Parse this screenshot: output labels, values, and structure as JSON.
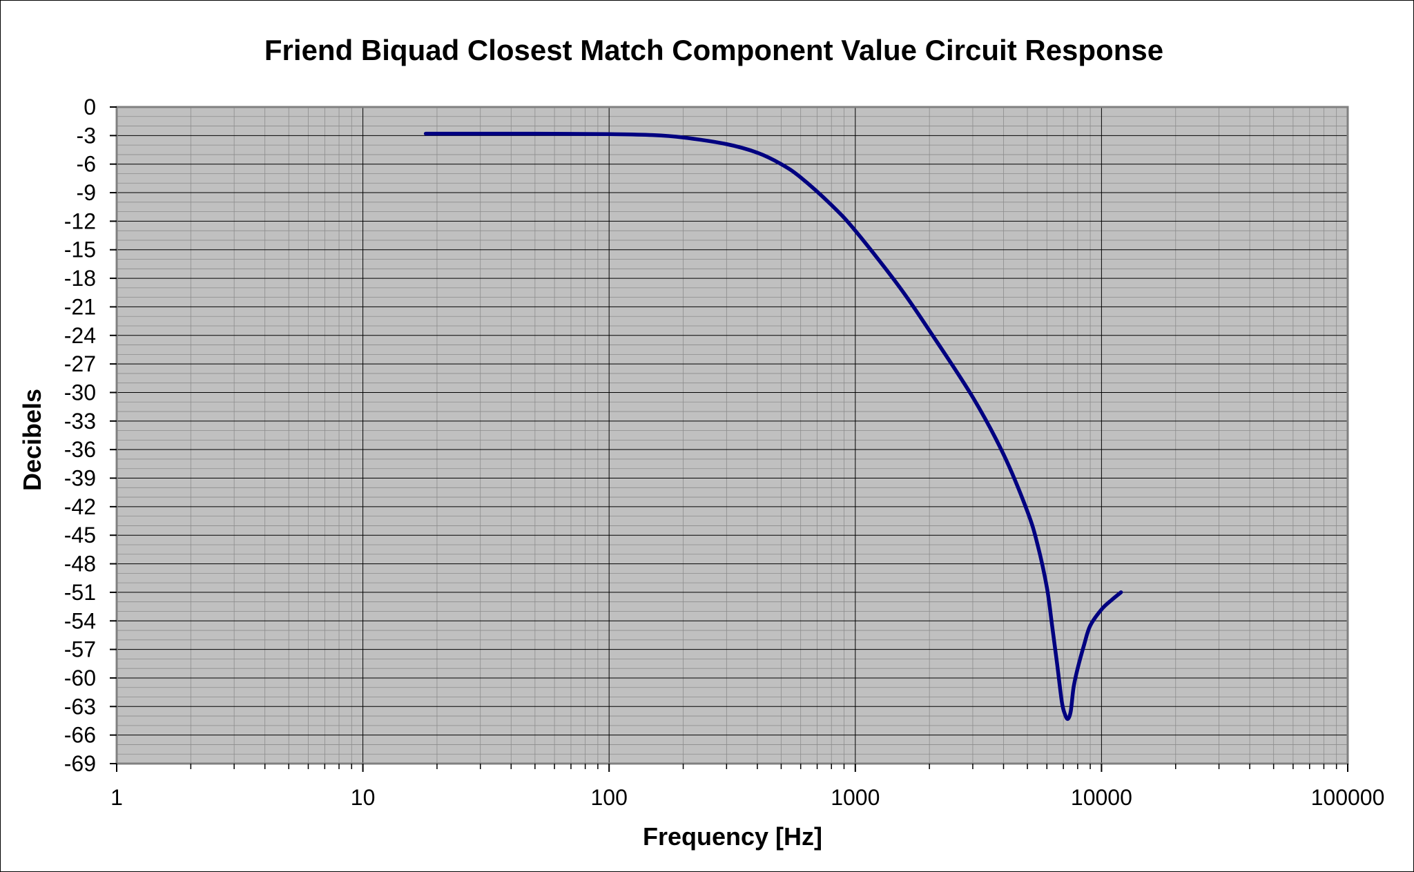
{
  "chart_data": {
    "type": "line",
    "title": "Friend Biquad Closest Match Component Value Circuit Response",
    "xlabel": "Frequency [Hz]",
    "ylabel": "Decibels",
    "xscale": "log",
    "xlim": [
      1,
      100000
    ],
    "ylim": [
      -69,
      0
    ],
    "x_ticks": [
      "1",
      "10",
      "100",
      "1000",
      "10000",
      "100000"
    ],
    "y_ticks": [
      "0",
      "-3",
      "-6",
      "-9",
      "-12",
      "-15",
      "-18",
      "-21",
      "-24",
      "-27",
      "-30",
      "-33",
      "-36",
      "-39",
      "-42",
      "-45",
      "-48",
      "-51",
      "-54",
      "-57",
      "-60",
      "-63",
      "-66",
      "-69"
    ],
    "grid": true,
    "legend": "none",
    "colors": {
      "plot_background": "#c0c0c0",
      "line": "#000080",
      "grid": "#000000"
    },
    "series": [
      {
        "x": [
          18,
          30,
          50,
          100,
          150,
          200,
          300,
          400,
          500,
          600,
          800,
          1000,
          1500,
          2000,
          3000,
          4000,
          5000,
          5500,
          6000,
          6300,
          6600,
          6900,
          7100,
          7300,
          7500,
          7700,
          8000,
          8500,
          9000,
          10000,
          11000,
          12000
        ],
        "y": [
          -2.8,
          -2.8,
          -2.8,
          -2.85,
          -2.95,
          -3.2,
          -3.9,
          -4.8,
          -6.0,
          -7.4,
          -10.3,
          -13.0,
          -18.8,
          -23.5,
          -30.5,
          -36.5,
          -42.5,
          -46.0,
          -50.5,
          -54.5,
          -58.5,
          -62.5,
          -63.8,
          -64.3,
          -63.5,
          -61.0,
          -59.0,
          -56.5,
          -54.5,
          -52.8,
          -51.8,
          -51.0
        ]
      }
    ]
  }
}
